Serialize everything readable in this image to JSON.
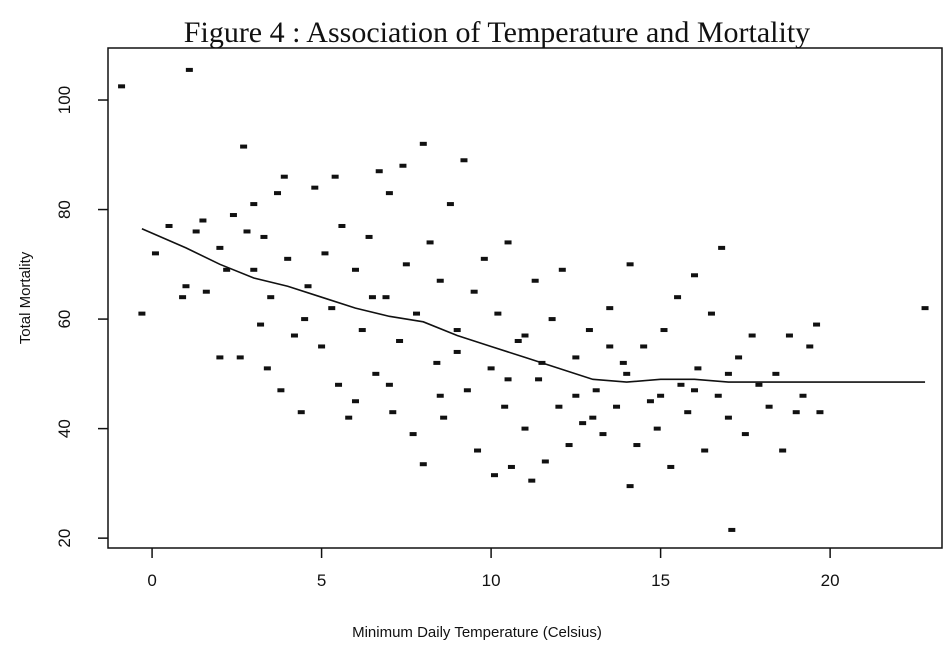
{
  "chart_data": {
    "type": "scatter",
    "title": "Figure 4 :  Association of Temperature and Mortality",
    "x_label": "Minimum Daily Temperature (Celsius)",
    "y_label": "Total Mortality",
    "xlim": [
      -1.3,
      23.3
    ],
    "ylim": [
      18.2,
      109.5
    ],
    "xticks": [
      0,
      5,
      10,
      15,
      20
    ],
    "yticks": [
      20,
      40,
      60,
      80,
      100
    ],
    "color": "#111111",
    "x": [
      -0.9,
      1.1,
      -0.3,
      0.1,
      0.5,
      0.9,
      1,
      1.3,
      1.5,
      1.6,
      2,
      2.2,
      2.4,
      2.6,
      2.7,
      2.8,
      3,
      3.2,
      3.3,
      3.4,
      3.5,
      3.7,
      3.8,
      3.9,
      4,
      4.2,
      4.4,
      4.6,
      4.8,
      5,
      5.1,
      5.3,
      5.4,
      5.5,
      5.6,
      5.8,
      6,
      6.2,
      6.4,
      6.6,
      6.7,
      6.9,
      7,
      7.1,
      7.3,
      7.4,
      7.5,
      7.7,
      7.8,
      8,
      8,
      8.2,
      8.4,
      8.5,
      8.6,
      8.8,
      9,
      9.2,
      9.3,
      9.5,
      9.6,
      9.8,
      10,
      10.1,
      10.2,
      10.4,
      10.5,
      10.6,
      10.8,
      11,
      11.2,
      11.3,
      11.4,
      11.6,
      11.8,
      12,
      12.1,
      12.3,
      12.5,
      12.7,
      12.9,
      13.1,
      13.3,
      13.5,
      13.7,
      13.9,
      14.1,
      14.1,
      14.3,
      14.5,
      14.7,
      14.9,
      15.1,
      15.3,
      15.5,
      15.6,
      15.8,
      16,
      16.1,
      16.3,
      16.5,
      16.7,
      16.8,
      17,
      17.1,
      17.3,
      17.5,
      17.7,
      17.9,
      18.2,
      18.4,
      18.6,
      18.8,
      19,
      19.2,
      19.4,
      19.6,
      19.7,
      22.8,
      6,
      7,
      8.5,
      9,
      10.5,
      11.5,
      12.5,
      13,
      14,
      15,
      16,
      17,
      4.5,
      3,
      2,
      6.5,
      11,
      13.5
    ],
    "y": [
      102.5,
      105.5,
      61,
      72,
      77,
      64,
      66,
      76,
      78,
      65,
      73,
      69,
      79,
      53,
      91.5,
      76,
      81,
      59,
      75,
      51,
      64,
      83,
      47,
      86,
      71,
      57,
      43,
      66,
      84,
      55,
      72,
      62,
      86,
      48,
      77,
      42,
      69,
      58,
      75,
      50,
      87,
      64,
      83,
      43,
      56,
      88,
      70,
      39,
      61,
      92,
      33.5,
      74,
      52,
      67,
      42,
      81,
      58,
      89,
      47,
      65,
      36,
      71,
      51,
      31.5,
      61,
      44,
      74,
      33,
      56,
      40,
      30.5,
      67,
      49,
      34,
      60,
      44,
      69,
      37,
      53,
      41,
      58,
      47,
      39,
      62,
      44,
      52,
      29.5,
      70,
      37,
      55,
      45,
      40,
      58,
      33,
      64,
      48,
      43,
      68,
      51,
      36,
      61,
      46,
      73,
      42,
      21.5,
      53,
      39,
      57,
      48,
      44,
      50,
      36,
      57,
      43,
      46,
      55,
      59,
      43,
      62,
      45,
      48,
      46,
      54,
      49,
      52,
      46,
      42,
      50,
      46,
      47,
      50,
      60,
      69,
      53,
      64,
      57,
      55
    ],
    "trend_line": {
      "x": [
        -0.3,
        1,
        2,
        3,
        4,
        5,
        6,
        7,
        8,
        9,
        10,
        11,
        12,
        13,
        14,
        15,
        16,
        17,
        18,
        19,
        20,
        22.8
      ],
      "y": [
        76.5,
        73,
        70,
        67.5,
        66,
        64,
        62,
        60.5,
        59.5,
        57,
        55,
        53,
        51,
        49,
        48.5,
        49,
        49,
        48.5,
        48.5,
        48.5,
        48.5,
        48.5
      ]
    }
  }
}
